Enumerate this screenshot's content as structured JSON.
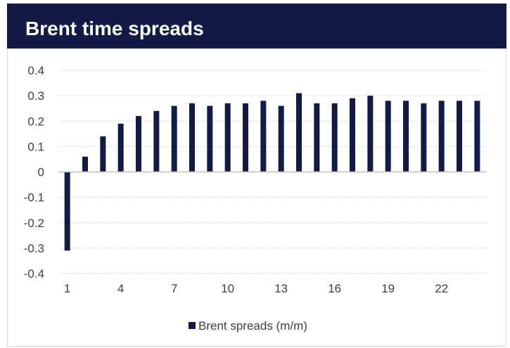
{
  "title": "Brent time spreads",
  "colors": {
    "header_bg": "#111b45",
    "bar": "#111b45",
    "grid": "#d9d9d9",
    "axis": "#bfbfbf",
    "text": "#404040"
  },
  "chart_data": {
    "type": "bar",
    "title": "Brent time spreads",
    "xlabel": "",
    "ylabel": "",
    "ylim": [
      -0.4,
      0.4
    ],
    "yticks": [
      -0.4,
      -0.3,
      -0.2,
      -0.1,
      0,
      0.1,
      0.2,
      0.3,
      0.4
    ],
    "ytick_labels": [
      "-0.4",
      "-0.3",
      "-0.2",
      "-0.1",
      "0",
      "0.1",
      "0.2",
      "0.3",
      "0.4"
    ],
    "categories": [
      1,
      2,
      3,
      4,
      5,
      6,
      7,
      8,
      9,
      10,
      11,
      12,
      13,
      14,
      15,
      16,
      17,
      18,
      19,
      20,
      21,
      22,
      23,
      24
    ],
    "xtick_labels": [
      "1",
      "4",
      "7",
      "10",
      "13",
      "16",
      "19",
      "22"
    ],
    "xtick_positions": [
      1,
      4,
      7,
      10,
      13,
      16,
      19,
      22
    ],
    "grid": true,
    "legend_position": "bottom",
    "series": [
      {
        "name": "Brent spreads (m/m)",
        "values": [
          -0.31,
          0.06,
          0.14,
          0.19,
          0.22,
          0.24,
          0.26,
          0.27,
          0.26,
          0.27,
          0.27,
          0.28,
          0.26,
          0.31,
          0.27,
          0.27,
          0.29,
          0.3,
          0.28,
          0.28,
          0.27,
          0.28,
          0.28,
          0.28
        ]
      }
    ]
  }
}
